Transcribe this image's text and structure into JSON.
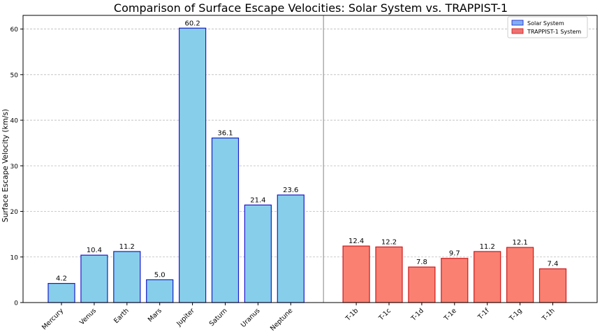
{
  "chart_data": {
    "type": "bar",
    "title": "Comparison of Surface Escape Velocities: Solar System vs. TRAPPIST-1",
    "xlabel": "",
    "ylabel": "Surface Escape Velocity (km/s)",
    "ylim": [
      0,
      63
    ],
    "yticks": [
      0,
      10,
      20,
      30,
      40,
      50,
      60
    ],
    "grid": "y-dashed",
    "legend_placement": "top-right",
    "series": [
      {
        "name": "Solar System",
        "color": "#87CEEB",
        "edge_color": "#1a1acc",
        "legend_color": "#7fb0f0",
        "categories": [
          "Mercury",
          "Venus",
          "Earth",
          "Mars",
          "Jupiter",
          "Saturn",
          "Uranus",
          "Neptune"
        ],
        "values": [
          4.2,
          10.4,
          11.2,
          5.0,
          60.2,
          36.1,
          21.4,
          23.6
        ],
        "labels": [
          "4.2",
          "10.4",
          "11.2",
          "5.0",
          "60.2",
          "36.1",
          "21.4",
          "23.6"
        ]
      },
      {
        "name": "TRAPPIST-1 System",
        "color": "#FA8072",
        "edge_color": "#cc1a1a",
        "legend_color": "#f07070",
        "categories": [
          "T-1b",
          "T-1c",
          "T-1d",
          "T-1e",
          "T-1f",
          "T-1g",
          "T-1h"
        ],
        "values": [
          12.4,
          12.2,
          7.8,
          9.7,
          11.2,
          12.1,
          7.4
        ],
        "labels": [
          "12.4",
          "12.2",
          "7.8",
          "9.7",
          "11.2",
          "12.1",
          "7.4"
        ]
      }
    ],
    "separator": "vertical-line-between-groups"
  }
}
